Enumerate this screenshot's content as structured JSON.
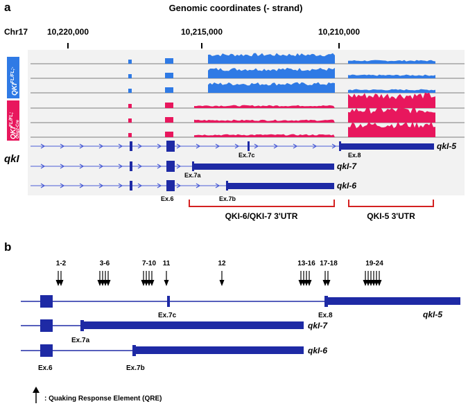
{
  "panel_a": {
    "label": "a",
    "title": "Genomic coordinates (- strand)",
    "chromosome": "Chr17",
    "coordinates": [
      "10,220,000",
      "10,215,000",
      "10,210,000"
    ],
    "group1_label": "QKI",
    "group1_superscript": "FL/FL;-",
    "group2_label": "QKI",
    "group2_superscript": "FL/FL;",
    "group2_sub": "Olig2-Cre",
    "colors": {
      "group1": "#2f7ae5",
      "group2": "#e8175d",
      "gene": "#1e2aa5",
      "utr_bracket": "#d42020"
    },
    "gene_symbol": "qkI",
    "isoforms": [
      "qkI-5",
      "qkI-7",
      "qkI-6"
    ],
    "exon_labels": {
      "ex7c": "Ex.7c",
      "ex8": "Ex.8",
      "ex7a": "Ex.7a",
      "ex6": "Ex.6",
      "ex7b": "Ex.7b"
    },
    "utr_labels": [
      "QKI-6/QKI-7 3'UTR",
      "QKI-5 3'UTR"
    ]
  },
  "panel_b": {
    "label": "b",
    "qre_groups": [
      "1-2",
      "3-6",
      "7-10",
      "11",
      "12",
      "13-16",
      "17-18",
      "19-24"
    ],
    "isoforms": [
      "qkI-5",
      "qkI-7",
      "qkI-6"
    ],
    "exon_labels": {
      "ex7c": "Ex.7c",
      "ex8": "Ex.8",
      "ex7a": "Ex.7a",
      "ex6": "Ex.6",
      "ex7b": "Ex.7b"
    },
    "legend": ": Quaking Response Element (QRE)"
  }
}
